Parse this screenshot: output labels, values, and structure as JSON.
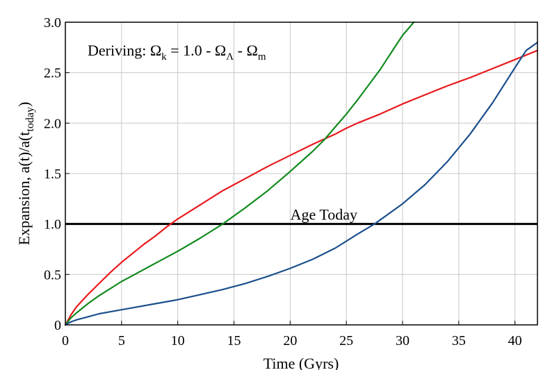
{
  "chart_data": {
    "type": "line",
    "title": "",
    "xlabel": "Time (Gyrs)",
    "ylabel": "Expansion, a(t)/a(t",
    "ylabel_sub": "today",
    "ylabel_close": ")",
    "xlim": [
      0,
      42
    ],
    "ylim": [
      0,
      3.0
    ],
    "xticks": [
      0,
      5,
      10,
      15,
      20,
      25,
      30,
      35,
      40
    ],
    "yticks": [
      0,
      0.5,
      1.0,
      1.5,
      2.0,
      2.5,
      3.0
    ],
    "xtick_labels": [
      "0",
      "5",
      "10",
      "15",
      "20",
      "25",
      "30",
      "35",
      "40"
    ],
    "ytick_labels": [
      "0",
      "0.5",
      "1.0",
      "1.5",
      "2.0",
      "2.5",
      "3.0"
    ],
    "grid": true,
    "annotation": {
      "prefix": "Deriving: Ω",
      "sub_k": "k",
      "mid": " = 1.0 - Ω",
      "sub_lambda": "Λ",
      "dash": " - Ω",
      "sub_m": "m"
    },
    "reference_line": {
      "y": 1.0,
      "label": "Age Today",
      "label_x": 23,
      "color": "#000000"
    },
    "series": [
      {
        "name": "red",
        "color": "#e8191c",
        "x": [
          0,
          0.5,
          1,
          2,
          3,
          4,
          5,
          6,
          7,
          8,
          9,
          10,
          12,
          14,
          15,
          16,
          18,
          20,
          22,
          24,
          25,
          26,
          28,
          30,
          32,
          34,
          35,
          36,
          38,
          40,
          42
        ],
        "y": [
          0.0,
          0.1,
          0.18,
          0.3,
          0.41,
          0.52,
          0.62,
          0.71,
          0.8,
          0.88,
          0.97,
          1.05,
          1.19,
          1.33,
          1.39,
          1.45,
          1.57,
          1.68,
          1.79,
          1.89,
          1.95,
          2.0,
          2.09,
          2.19,
          2.28,
          2.37,
          2.41,
          2.45,
          2.54,
          2.63,
          2.72
        ]
      },
      {
        "name": "green",
        "color": "#118a1e",
        "x": [
          0,
          0.5,
          1,
          2,
          3,
          4,
          5,
          6,
          8,
          10,
          12,
          14,
          16,
          18,
          20,
          22,
          23,
          24,
          25,
          26,
          27,
          28,
          29,
          30,
          31
        ],
        "y": [
          0.0,
          0.07,
          0.12,
          0.21,
          0.29,
          0.36,
          0.43,
          0.49,
          0.61,
          0.73,
          0.86,
          1.0,
          1.16,
          1.33,
          1.52,
          1.72,
          1.83,
          1.96,
          2.09,
          2.23,
          2.38,
          2.53,
          2.7,
          2.87,
          3.0
        ]
      },
      {
        "name": "blue",
        "color": "#1b4f8c",
        "x": [
          0,
          0.5,
          1,
          2,
          3,
          4,
          5,
          6,
          8,
          10,
          12,
          14,
          16,
          18,
          20,
          22,
          24,
          26,
          27.5,
          30,
          32,
          34,
          36,
          38,
          40,
          41,
          42
        ],
        "y": [
          0.0,
          0.03,
          0.05,
          0.08,
          0.11,
          0.13,
          0.15,
          0.17,
          0.21,
          0.25,
          0.3,
          0.35,
          0.41,
          0.48,
          0.56,
          0.65,
          0.76,
          0.9,
          1.0,
          1.2,
          1.39,
          1.62,
          1.89,
          2.2,
          2.55,
          2.72,
          2.8
        ]
      }
    ]
  }
}
